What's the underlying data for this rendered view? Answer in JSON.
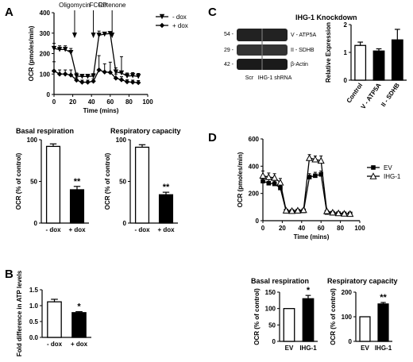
{
  "panels": {
    "A": {
      "label": "A",
      "ocr": {
        "ylabel": "OCR (pmoles/min)",
        "xlabel": "Time (mins)",
        "xlim": [
          0,
          100
        ],
        "ylim": [
          0,
          400
        ],
        "xticks": [
          0,
          20,
          40,
          60,
          80,
          100
        ],
        "yticks": [
          0,
          100,
          200,
          300,
          400
        ],
        "annotations": [
          {
            "text": "Oligomycin",
            "x": 22
          },
          {
            "text": "FCCP",
            "x": 42
          },
          {
            "text": "Rotenone",
            "x": 62
          }
        ],
        "series": [
          {
            "name": "- dox",
            "marker": "tri-down",
            "x": [
              0,
              6,
              12,
              18,
              24,
              30,
              36,
              42,
              48,
              54,
              60,
              66,
              72,
              78,
              84,
              90
            ],
            "y": [
              225,
              220,
              220,
              205,
              90,
              88,
              88,
              90,
              290,
              295,
              298,
              110,
              105,
              90,
              92,
              88
            ],
            "err": [
              25,
              18,
              18,
              20,
              15,
              10,
              10,
              12,
              20,
              8,
              8,
              20,
              80,
              15,
              15,
              15
            ]
          },
          {
            "name": "+ dox",
            "marker": "diamond",
            "x": [
              0,
              6,
              12,
              18,
              24,
              30,
              36,
              42,
              48,
              54,
              60,
              66,
              72,
              78,
              84,
              90
            ],
            "y": [
              115,
              100,
              100,
              95,
              70,
              60,
              60,
              65,
              120,
              110,
              108,
              80,
              72,
              62,
              60,
              58
            ],
            "err": [
              45,
              20,
              20,
              25,
              12,
              10,
              10,
              12,
              70,
              40,
              50,
              20,
              15,
              10,
              10,
              10
            ]
          }
        ]
      },
      "basal": {
        "title": "Basal respiration",
        "ylabel": "OCR (% of control)",
        "categories": [
          "- dox",
          "+ dox"
        ],
        "values": [
          92,
          40
        ],
        "err": [
          3,
          4
        ],
        "ylim": [
          0,
          100
        ],
        "yticks": [
          0,
          50,
          100
        ],
        "significance": [
          "",
          "**"
        ]
      },
      "capacity": {
        "title": "Respiratory capacity",
        "ylabel": "OCR (% of control)",
        "categories": [
          "- dox",
          "+ dox"
        ],
        "values": [
          91,
          34
        ],
        "err": [
          3,
          3
        ],
        "ylim": [
          0,
          100
        ],
        "yticks": [
          0,
          50,
          100
        ],
        "significance": [
          "",
          "**"
        ]
      }
    },
    "B": {
      "label": "B",
      "ylabel": "Fold difference in ATP levels",
      "categories": [
        "- dox",
        "+ dox"
      ],
      "values": [
        1.12,
        0.78
      ],
      "err": [
        0.08,
        0.03
      ],
      "ylim": [
        0,
        1.5
      ],
      "yticks": [
        "0.0",
        "0.5",
        "1.0",
        "1.5"
      ],
      "significance": [
        "",
        "*"
      ]
    },
    "C": {
      "label": "C",
      "blot": {
        "markers": [
          "54 -",
          "29 -",
          "42 -"
        ],
        "bands": [
          "V - ATP5A",
          "II - SDHB",
          "β-Actin"
        ],
        "lanes": [
          "Scr",
          "IHG-1 shRNA"
        ]
      },
      "expression": {
        "title": "IHG-1 Knockdown",
        "ylabel": "Relative Expression",
        "categories": [
          "Control",
          "V - ATP5A",
          "II - SDHB"
        ],
        "values": [
          1.25,
          1.05,
          1.45
        ],
        "err": [
          0.12,
          0.08,
          0.38
        ],
        "ylim": [
          0,
          2
        ],
        "yticks": [
          0,
          1,
          2
        ]
      }
    },
    "D": {
      "label": "D",
      "ocr": {
        "ylabel": "OCR (pmoles/min)",
        "xlabel": "Time (mins)",
        "xlim": [
          0,
          100
        ],
        "ylim": [
          0,
          600
        ],
        "xticks": [
          0,
          20,
          40,
          60,
          80,
          100
        ],
        "yticks": [
          0,
          200,
          400,
          600
        ],
        "series": [
          {
            "name": "EV",
            "marker": "square",
            "x": [
              0,
              6,
              12,
              18,
              24,
              30,
              36,
              42,
              48,
              54,
              60,
              66,
              72,
              78,
              84,
              90
            ],
            "y": [
              290,
              275,
              270,
              240,
              70,
              68,
              70,
              72,
              320,
              330,
              340,
              60,
              55,
              52,
              50,
              50
            ],
            "err": [
              30,
              25,
              20,
              20,
              10,
              10,
              10,
              10,
              25,
              25,
              25,
              10,
              10,
              8,
              8,
              8
            ]
          },
          {
            "name": "IHG-1",
            "marker": "triangle",
            "x": [
              0,
              6,
              12,
              18,
              24,
              30,
              36,
              42,
              48,
              54,
              60,
              66,
              72,
              78,
              84,
              90
            ],
            "y": [
              330,
              320,
              315,
              280,
              75,
              72,
              75,
              78,
              460,
              450,
              440,
              70,
              60,
              55,
              52,
              50
            ],
            "err": [
              35,
              30,
              30,
              30,
              10,
              10,
              10,
              10,
              25,
              25,
              35,
              10,
              10,
              8,
              8,
              8
            ]
          }
        ]
      },
      "basal": {
        "title": "Basal respiration",
        "ylabel": "OCR (% of control)",
        "categories": [
          "EV",
          "IHG-1"
        ],
        "values": [
          100,
          130
        ],
        "err": [
          0,
          10
        ],
        "ylim": [
          0,
          150
        ],
        "yticks": [
          0,
          50,
          100,
          150
        ],
        "significance": [
          "",
          "*"
        ]
      },
      "capacity": {
        "title": "Respiratory capacity",
        "ylabel": "OCR (% of control)",
        "categories": [
          "EV",
          "IHG-1"
        ],
        "values": [
          100,
          152
        ],
        "err": [
          0,
          6
        ],
        "ylim": [
          0,
          200
        ],
        "yticks": [
          0,
          100,
          200
        ],
        "significance": [
          "",
          "**"
        ]
      }
    }
  },
  "chart_data": [
    {
      "type": "line",
      "panel": "A",
      "xlabel": "Time (mins)",
      "ylabel": "OCR (pmoles/min)",
      "xlim": [
        0,
        100
      ],
      "ylim": [
        0,
        400
      ],
      "x": [
        0,
        6,
        12,
        18,
        24,
        30,
        36,
        42,
        48,
        54,
        60,
        66,
        72,
        78,
        84,
        90
      ],
      "series": [
        {
          "name": "- dox",
          "values": [
            225,
            220,
            220,
            205,
            90,
            88,
            88,
            90,
            290,
            295,
            298,
            110,
            105,
            90,
            92,
            88
          ]
        },
        {
          "name": "+ dox",
          "values": [
            115,
            100,
            100,
            95,
            70,
            60,
            60,
            65,
            120,
            110,
            108,
            80,
            72,
            62,
            60,
            58
          ]
        }
      ],
      "annotations": [
        "Oligomycin",
        "FCCP",
        "Rotenone"
      ],
      "legend": "top-right"
    },
    {
      "type": "bar",
      "panel": "A",
      "title": "Basal respiration",
      "ylabel": "OCR (% of control)",
      "categories": [
        "- dox",
        "+ dox"
      ],
      "values": [
        92,
        40
      ],
      "ylim": [
        0,
        100
      ]
    },
    {
      "type": "bar",
      "panel": "A",
      "title": "Respiratory capacity",
      "ylabel": "OCR (% of control)",
      "categories": [
        "- dox",
        "+ dox"
      ],
      "values": [
        91,
        34
      ],
      "ylim": [
        0,
        100
      ]
    },
    {
      "type": "bar",
      "panel": "B",
      "ylabel": "Fold difference in ATP levels",
      "categories": [
        "- dox",
        "+ dox"
      ],
      "values": [
        1.12,
        0.78
      ],
      "ylim": [
        0,
        1.5
      ]
    },
    {
      "type": "bar",
      "panel": "C",
      "title": "IHG-1 Knockdown",
      "ylabel": "Relative Expression",
      "categories": [
        "Control",
        "V - ATP5A",
        "II - SDHB"
      ],
      "values": [
        1.25,
        1.05,
        1.45
      ],
      "ylim": [
        0,
        2
      ]
    },
    {
      "type": "line",
      "panel": "D",
      "xlabel": "Time (mins)",
      "ylabel": "OCR (pmoles/min)",
      "xlim": [
        0,
        100
      ],
      "ylim": [
        0,
        600
      ],
      "x": [
        0,
        6,
        12,
        18,
        24,
        30,
        36,
        42,
        48,
        54,
        60,
        66,
        72,
        78,
        84,
        90
      ],
      "series": [
        {
          "name": "EV",
          "values": [
            290,
            275,
            270,
            240,
            70,
            68,
            70,
            72,
            320,
            330,
            340,
            60,
            55,
            52,
            50,
            50
          ]
        },
        {
          "name": "IHG-1",
          "values": [
            330,
            320,
            315,
            280,
            75,
            72,
            75,
            78,
            460,
            450,
            440,
            70,
            60,
            55,
            52,
            50
          ]
        }
      ],
      "legend": "right"
    },
    {
      "type": "bar",
      "panel": "D",
      "title": "Basal respiration",
      "ylabel": "OCR (% of control)",
      "categories": [
        "EV",
        "IHG-1"
      ],
      "values": [
        100,
        130
      ],
      "ylim": [
        0,
        150
      ]
    },
    {
      "type": "bar",
      "panel": "D",
      "title": "Respiratory capacity",
      "ylabel": "OCR (% of control)",
      "categories": [
        "EV",
        "IHG-1"
      ],
      "values": [
        100,
        152
      ],
      "ylim": [
        0,
        200
      ]
    }
  ]
}
